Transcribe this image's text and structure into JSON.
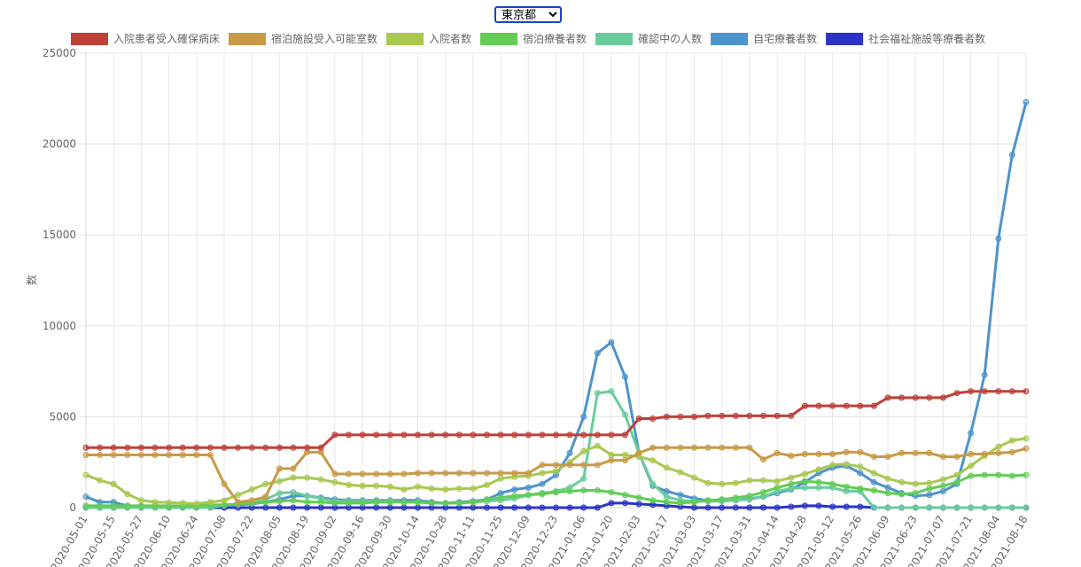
{
  "selector": {
    "value": "東京都",
    "options": [
      "東京都"
    ]
  },
  "chart_data": {
    "type": "line",
    "ylabel": "数",
    "xlabel": "",
    "ylim": [
      0,
      25000
    ],
    "yticks": [
      0,
      5000,
      10000,
      15000,
      20000,
      25000
    ],
    "grid": true,
    "legend_position": "top",
    "x_dates": [
      "2020-05-01",
      "2020-05-08",
      "2020-05-15",
      "2020-05-22",
      "2020-05-27",
      "2020-06-03",
      "2020-06-10",
      "2020-06-17",
      "2020-06-24",
      "2020-07-01",
      "2020-07-08",
      "2020-07-15",
      "2020-07-22",
      "2020-07-29",
      "2020-08-05",
      "2020-08-12",
      "2020-08-19",
      "2020-08-26",
      "2020-09-02",
      "2020-09-09",
      "2020-09-16",
      "2020-09-23",
      "2020-09-30",
      "2020-10-07",
      "2020-10-14",
      "2020-10-21",
      "2020-10-28",
      "2020-11-04",
      "2020-11-11",
      "2020-11-18",
      "2020-11-25",
      "2020-12-02",
      "2020-12-09",
      "2020-12-16",
      "2020-12-23",
      "2020-12-30",
      "2021-01-06",
      "2021-01-13",
      "2021-01-20",
      "2021-01-27",
      "2021-02-03",
      "2021-02-10",
      "2021-02-17",
      "2021-02-24",
      "2021-03-03",
      "2021-03-10",
      "2021-03-17",
      "2021-03-24",
      "2021-03-31",
      "2021-04-07",
      "2021-04-14",
      "2021-04-21",
      "2021-04-28",
      "2021-05-05",
      "2021-05-12",
      "2021-05-19",
      "2021-05-26",
      "2021-06-02",
      "2021-06-09",
      "2021-06-16",
      "2021-06-23",
      "2021-06-30",
      "2021-07-07",
      "2021-07-14",
      "2021-07-21",
      "2021-07-28",
      "2021-08-04",
      "2021-08-11",
      "2021-08-18"
    ],
    "x_tick_labels": [
      "2020-05-01",
      "2020-05-15",
      "2020-05-27",
      "2020-06-10",
      "2020-06-24",
      "2020-07-08",
      "2020-07-22",
      "2020-08-05",
      "2020-08-19",
      "2020-09-02",
      "2020-09-16",
      "2020-09-30",
      "2020-10-14",
      "2020-10-28",
      "2020-11-11",
      "2020-11-25",
      "2020-12-09",
      "2020-12-23",
      "2021-01-06",
      "2021-01-20",
      "2021-02-03",
      "2021-02-17",
      "2021-03-03",
      "2021-03-17",
      "2021-03-31",
      "2021-04-14",
      "2021-04-28",
      "2021-05-12",
      "2021-05-26",
      "2021-06-09",
      "2021-06-23",
      "2021-07-07",
      "2021-07-21",
      "2021-08-04",
      "2021-08-18"
    ],
    "series": [
      {
        "name": "入院患者受入確保病床",
        "color": "#c0403a",
        "values": [
          3300,
          3300,
          3300,
          3300,
          3300,
          3300,
          3300,
          3300,
          3300,
          3300,
          3300,
          3300,
          3300,
          3300,
          3300,
          3300,
          3300,
          3300,
          4000,
          4000,
          4000,
          4000,
          4000,
          4000,
          4000,
          4000,
          4000,
          4000,
          4000,
          4000,
          4000,
          4000,
          4000,
          4000,
          4000,
          4000,
          4000,
          4000,
          4000,
          4000,
          4900,
          4900,
          5000,
          5000,
          5000,
          5050,
          5050,
          5050,
          5050,
          5050,
          5050,
          5050,
          5600,
          5600,
          5600,
          5600,
          5600,
          5600,
          6050,
          6050,
          6050,
          6050,
          6050,
          6300,
          6400,
          6400,
          6400,
          6400,
          6400
        ]
      },
      {
        "name": "宿泊施設受入可能室数",
        "color": "#c89a48",
        "values": [
          2900,
          2900,
          2900,
          2900,
          2900,
          2900,
          2900,
          2900,
          2900,
          2900,
          1300,
          300,
          400,
          600,
          2150,
          2150,
          3050,
          3050,
          1850,
          1850,
          1850,
          1850,
          1850,
          1850,
          1900,
          1900,
          1900,
          1900,
          1900,
          1900,
          1900,
          1900,
          1900,
          2350,
          2350,
          2350,
          2350,
          2350,
          2600,
          2600,
          3000,
          3300,
          3300,
          3300,
          3300,
          3300,
          3300,
          3300,
          3300,
          2650,
          3000,
          2850,
          2950,
          2950,
          2950,
          3050,
          3050,
          2800,
          2800,
          3000,
          3000,
          3000,
          2800,
          2800,
          2950,
          2950,
          3000,
          3050,
          3250
        ]
      },
      {
        "name": "入院者数",
        "color": "#a8c850",
        "values": [
          1800,
          1500,
          1300,
          750,
          400,
          300,
          280,
          250,
          220,
          300,
          400,
          700,
          1000,
          1300,
          1450,
          1650,
          1650,
          1550,
          1400,
          1250,
          1200,
          1200,
          1150,
          1000,
          1150,
          1050,
          1000,
          1050,
          1050,
          1250,
          1600,
          1700,
          1750,
          1900,
          2000,
          2500,
          3100,
          3400,
          2900,
          2900,
          2800,
          2600,
          2200,
          1950,
          1650,
          1350,
          1300,
          1350,
          1500,
          1500,
          1450,
          1650,
          1850,
          2100,
          2350,
          2400,
          2250,
          1900,
          1600,
          1400,
          1300,
          1350,
          1550,
          1800,
          2300,
          2850,
          3350,
          3700,
          3800
        ]
      },
      {
        "name": "宿泊療養者数",
        "color": "#62cc55",
        "values": [
          100,
          100,
          100,
          100,
          100,
          100,
          100,
          100,
          100,
          150,
          150,
          200,
          250,
          300,
          350,
          400,
          300,
          300,
          250,
          250,
          250,
          300,
          300,
          300,
          300,
          250,
          250,
          250,
          300,
          450,
          550,
          650,
          700,
          750,
          850,
          900,
          950,
          950,
          850,
          700,
          550,
          400,
          300,
          250,
          300,
          400,
          450,
          550,
          650,
          850,
          1100,
          1300,
          1450,
          1400,
          1300,
          1150,
          1050,
          950,
          800,
          750,
          800,
          1050,
          1200,
          1400,
          1750,
          1800,
          1800,
          1750,
          1800
        ]
      },
      {
        "name": "確認中の人数",
        "color": "#6acc9c",
        "values": [
          0,
          0,
          0,
          0,
          0,
          0,
          0,
          0,
          0,
          0,
          150,
          200,
          250,
          450,
          800,
          850,
          650,
          500,
          350,
          350,
          350,
          350,
          350,
          300,
          300,
          250,
          250,
          250,
          300,
          350,
          400,
          500,
          700,
          800,
          900,
          1100,
          1600,
          6300,
          6400,
          5100,
          3000,
          1300,
          600,
          400,
          350,
          350,
          350,
          400,
          450,
          600,
          900,
          1050,
          1100,
          1100,
          1100,
          900,
          900,
          0,
          0,
          0,
          0,
          0,
          0,
          0,
          0,
          0,
          0,
          0,
          0
        ]
      },
      {
        "name": "自宅療養者数",
        "color": "#4c94cc",
        "values": [
          600,
          300,
          300,
          100,
          50,
          50,
          50,
          50,
          50,
          50,
          100,
          150,
          200,
          300,
          450,
          650,
          650,
          550,
          450,
          400,
          400,
          400,
          400,
          400,
          400,
          300,
          250,
          300,
          350,
          450,
          800,
          1000,
          1100,
          1300,
          1800,
          3000,
          5000,
          8500,
          9100,
          7200,
          3000,
          1200,
          900,
          700,
          500,
          400,
          400,
          400,
          500,
          600,
          800,
          1000,
          1400,
          1900,
          2200,
          2300,
          1900,
          1400,
          1100,
          800,
          650,
          700,
          900,
          1300,
          4100,
          7300,
          14800,
          19400,
          22300
        ]
      },
      {
        "name": "社会福祉施設等療養者数",
        "color": "#2c34c8",
        "values": [
          0,
          0,
          0,
          0,
          0,
          0,
          0,
          0,
          0,
          0,
          0,
          0,
          0,
          0,
          0,
          0,
          0,
          0,
          0,
          0,
          0,
          0,
          0,
          0,
          0,
          0,
          0,
          0,
          0,
          0,
          0,
          0,
          0,
          0,
          0,
          0,
          0,
          0,
          250,
          250,
          200,
          150,
          100,
          50,
          0,
          0,
          0,
          0,
          0,
          0,
          0,
          50,
          100,
          100,
          50,
          50,
          50,
          0,
          0,
          0,
          0,
          0,
          0,
          0,
          0,
          0,
          0,
          0,
          0
        ]
      }
    ]
  }
}
